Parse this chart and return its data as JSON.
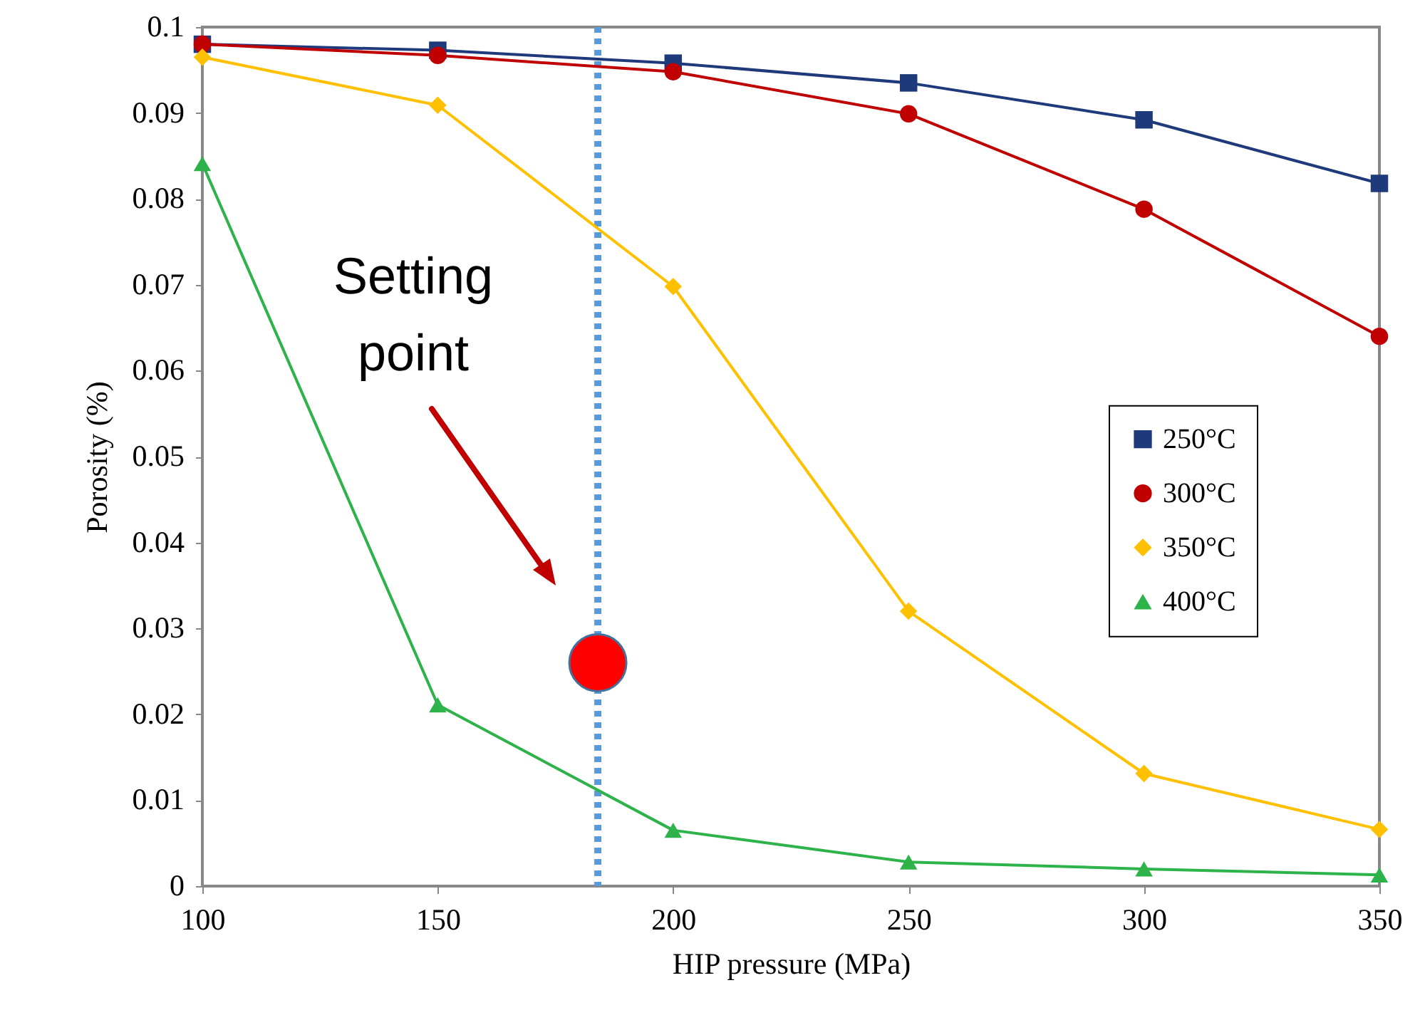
{
  "chart_data": {
    "type": "line",
    "xlabel": "HIP pressure (MPa)",
    "ylabel": "Porosity (%)",
    "x": [
      100,
      150,
      200,
      250,
      300,
      350
    ],
    "series": [
      {
        "name": "250°C",
        "color": "#1f3a7a",
        "marker": "square",
        "values": [
          0.098,
          0.0973,
          0.0958,
          0.0935,
          0.0892,
          0.0818
        ]
      },
      {
        "name": "300°C",
        "color": "#c00000",
        "marker": "circle",
        "values": [
          0.098,
          0.0967,
          0.0948,
          0.0899,
          0.0788,
          0.064
        ]
      },
      {
        "name": "350°C",
        "color": "#ffc000",
        "marker": "diamond",
        "values": [
          0.0965,
          0.0909,
          0.0698,
          0.032,
          0.0131,
          0.0066
        ]
      },
      {
        "name": "400°C",
        "color": "#2db34a",
        "marker": "triangle",
        "values": [
          0.0841,
          0.0211,
          0.0065,
          0.0028,
          0.002,
          0.0013
        ]
      },
      {
        "type": "scatter",
        "color": "#ff0000",
        "marker": "circle",
        "x": [
          184
        ],
        "values": [
          0.026
        ]
      }
    ],
    "xlim": [
      100,
      350
    ],
    "xticks": [
      100,
      150,
      200,
      250,
      300,
      350
    ],
    "ylim": [
      0,
      0.1
    ],
    "yticks": [
      0,
      0.01,
      0.02,
      0.03,
      0.04,
      0.05,
      0.06,
      0.07,
      0.08,
      0.09,
      0.1
    ],
    "ref_lines": [
      {
        "axis": "x",
        "value": 184,
        "color": "#5b9bd5",
        "line_style": "dotted"
      }
    ],
    "annotations": [
      "Setting point"
    ],
    "legend": "right",
    "grid": false
  }
}
